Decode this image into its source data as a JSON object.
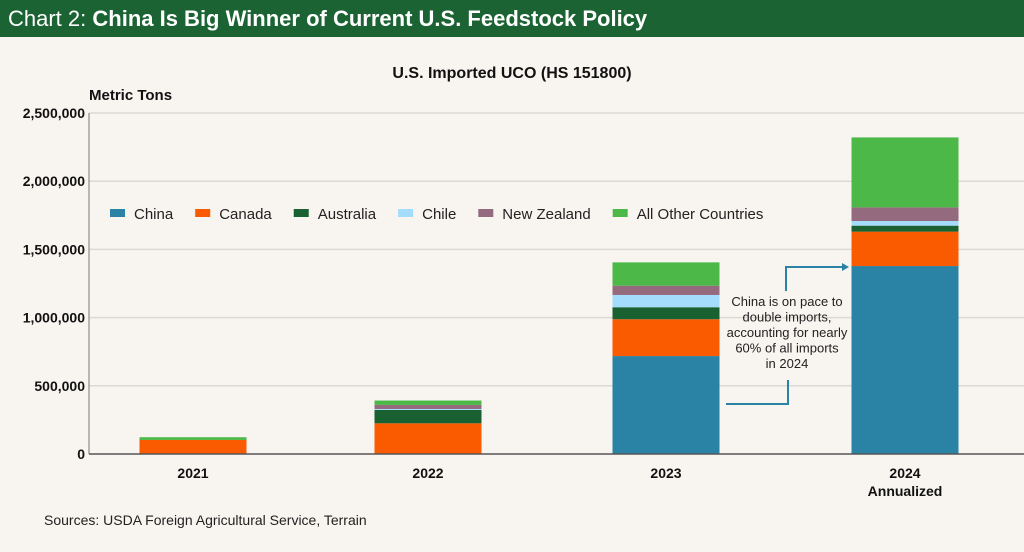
{
  "header": {
    "prefix": "Chart 2: ",
    "title": "China Is Big Winner of Current U.S. Feedstock Policy"
  },
  "source": "Sources: USDA Foreign Agricultural Service, Terrain",
  "chart_data": {
    "type": "bar",
    "stacked": true,
    "title": "U.S. Imported UCO (HS 151800)",
    "ylabel": "Metric Tons",
    "xlabel": "",
    "ylim": [
      0,
      2500000
    ],
    "yticks": [
      0,
      500000,
      1000000,
      1500000,
      2000000,
      2500000
    ],
    "ytick_labels": [
      "0",
      "500,000",
      "1,000,000",
      "1,500,000",
      "2,000,000",
      "2,500,000"
    ],
    "grid": true,
    "legend_position": "top-left",
    "categories": [
      "2021",
      "2022",
      "2023",
      "2024"
    ],
    "category_sublabels": [
      "",
      "",
      "",
      "Annualized"
    ],
    "series": [
      {
        "name": "China",
        "color": "#2a82a4",
        "values": [
          0,
          0,
          718000,
          1378000
        ]
      },
      {
        "name": "Canada",
        "color": "#fa5a00",
        "values": [
          103000,
          225000,
          270000,
          252000
        ]
      },
      {
        "name": "Australia",
        "color": "#1a6131",
        "values": [
          0,
          98000,
          88000,
          44000
        ]
      },
      {
        "name": "Chile",
        "color": "#a3dcfc",
        "values": [
          0,
          7000,
          90000,
          34000
        ]
      },
      {
        "name": "New Zealand",
        "color": "#946a7e",
        "values": [
          0,
          30000,
          68000,
          100000
        ]
      },
      {
        "name": "All Other Countries",
        "color": "#4cb848",
        "values": [
          20000,
          32000,
          171000,
          513000
        ]
      }
    ],
    "annotation": {
      "lines": [
        "China is on pace to",
        "double imports,",
        "accounting for nearly",
        "60% of all imports",
        "in 2024"
      ],
      "color": "#2a82a4"
    }
  }
}
